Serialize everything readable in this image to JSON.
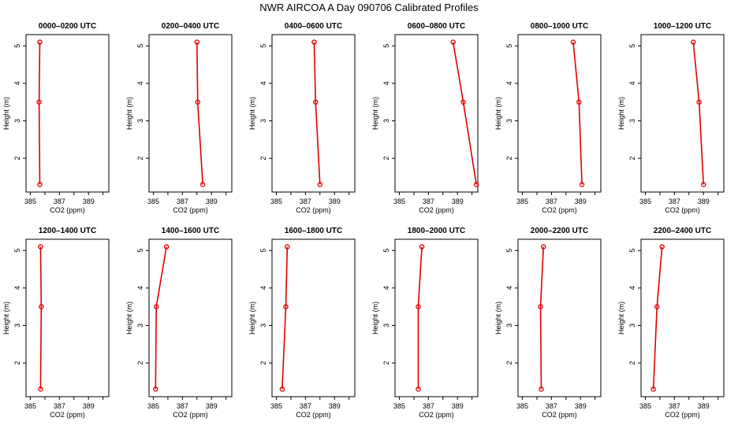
{
  "figure": {
    "title": "NWR AIRCOA A  Day 090706  Calibrated Profiles"
  },
  "colors": {
    "series": "#e00000",
    "axis": "#000000",
    "background": "#ffffff"
  },
  "chart_data": [
    {
      "type": "line",
      "title": "0000–0200 UTC",
      "xlabel": "CO2 (ppm)",
      "ylabel": "Height (m)",
      "xlim": [
        384.7,
        390.4
      ],
      "ylim": [
        1.1,
        5.3
      ],
      "x_ticks": [
        385,
        387,
        389
      ],
      "y_ticks": [
        2,
        3,
        4,
        5
      ],
      "x": [
        385.65,
        385.6,
        385.65
      ],
      "y": [
        5.1,
        3.5,
        1.3
      ]
    },
    {
      "type": "line",
      "title": "0200–0400 UTC",
      "xlabel": "CO2 (ppm)",
      "ylabel": "Height (m)",
      "xlim": [
        384.7,
        390.4
      ],
      "ylim": [
        1.1,
        5.3
      ],
      "x_ticks": [
        385,
        387,
        389
      ],
      "y_ticks": [
        2,
        3,
        4,
        5
      ],
      "x": [
        388.0,
        388.05,
        388.4
      ],
      "y": [
        5.1,
        3.5,
        1.3
      ]
    },
    {
      "type": "line",
      "title": "0400–0600 UTC",
      "xlabel": "CO2 (ppm)",
      "ylabel": "Height (m)",
      "xlim": [
        384.7,
        390.4
      ],
      "ylim": [
        1.1,
        5.3
      ],
      "x_ticks": [
        385,
        387,
        389
      ],
      "y_ticks": [
        2,
        3,
        4,
        5
      ],
      "x": [
        387.6,
        387.7,
        388.0
      ],
      "y": [
        5.1,
        3.5,
        1.3
      ]
    },
    {
      "type": "line",
      "title": "0600–0800 UTC",
      "xlabel": "CO2 (ppm)",
      "ylabel": "Height (m)",
      "xlim": [
        384.7,
        390.4
      ],
      "ylim": [
        1.1,
        5.3
      ],
      "x_ticks": [
        385,
        387,
        389
      ],
      "y_ticks": [
        2,
        3,
        4,
        5
      ],
      "x": [
        388.7,
        389.4,
        390.3
      ],
      "y": [
        5.1,
        3.5,
        1.3
      ]
    },
    {
      "type": "line",
      "title": "0800–1000 UTC",
      "xlabel": "CO2 (ppm)",
      "ylabel": "Height (m)",
      "xlim": [
        384.7,
        390.4
      ],
      "ylim": [
        1.1,
        5.3
      ],
      "x_ticks": [
        385,
        387,
        389
      ],
      "y_ticks": [
        2,
        3,
        4,
        5
      ],
      "x": [
        388.5,
        388.9,
        389.1
      ],
      "y": [
        5.1,
        3.5,
        1.3
      ]
    },
    {
      "type": "line",
      "title": "1000–1200 UTC",
      "xlabel": "CO2 (ppm)",
      "ylabel": "Height (m)",
      "xlim": [
        384.7,
        390.4
      ],
      "ylim": [
        1.1,
        5.3
      ],
      "x_ticks": [
        385,
        387,
        389
      ],
      "y_ticks": [
        2,
        3,
        4,
        5
      ],
      "x": [
        388.3,
        388.7,
        389.0
      ],
      "y": [
        5.1,
        3.5,
        1.3
      ]
    },
    {
      "type": "line",
      "title": "1200–1400 UTC",
      "xlabel": "CO2 (ppm)",
      "ylabel": "Height (m)",
      "xlim": [
        384.7,
        390.4
      ],
      "ylim": [
        1.1,
        5.3
      ],
      "x_ticks": [
        385,
        387,
        389
      ],
      "y_ticks": [
        2,
        3,
        4,
        5
      ],
      "x": [
        385.7,
        385.75,
        385.7
      ],
      "y": [
        5.1,
        3.5,
        1.3
      ]
    },
    {
      "type": "line",
      "title": "1400–1600 UTC",
      "xlabel": "CO2 (ppm)",
      "ylabel": "Height (m)",
      "xlim": [
        384.7,
        390.4
      ],
      "ylim": [
        1.1,
        5.3
      ],
      "x_ticks": [
        385,
        387,
        389
      ],
      "y_ticks": [
        2,
        3,
        4,
        5
      ],
      "x": [
        385.9,
        385.2,
        385.15
      ],
      "y": [
        5.1,
        3.5,
        1.3
      ]
    },
    {
      "type": "line",
      "title": "1600–1800 UTC",
      "xlabel": "CO2 (ppm)",
      "ylabel": "Height (m)",
      "xlim": [
        384.7,
        390.4
      ],
      "ylim": [
        1.1,
        5.3
      ],
      "x_ticks": [
        385,
        387,
        389
      ],
      "y_ticks": [
        2,
        3,
        4,
        5
      ],
      "x": [
        385.75,
        385.65,
        385.4
      ],
      "y": [
        5.1,
        3.5,
        1.3
      ]
    },
    {
      "type": "line",
      "title": "1800–2000 UTC",
      "xlabel": "CO2 (ppm)",
      "ylabel": "Height (m)",
      "xlim": [
        384.7,
        390.4
      ],
      "ylim": [
        1.1,
        5.3
      ],
      "x_ticks": [
        385,
        387,
        389
      ],
      "y_ticks": [
        2,
        3,
        4,
        5
      ],
      "x": [
        386.55,
        386.3,
        386.3
      ],
      "y": [
        5.1,
        3.5,
        1.3
      ]
    },
    {
      "type": "line",
      "title": "2000–2200 UTC",
      "xlabel": "CO2 (ppm)",
      "ylabel": "Height (m)",
      "xlim": [
        384.7,
        390.4
      ],
      "ylim": [
        1.1,
        5.3
      ],
      "x_ticks": [
        385,
        387,
        389
      ],
      "y_ticks": [
        2,
        3,
        4,
        5
      ],
      "x": [
        386.45,
        386.25,
        386.3
      ],
      "y": [
        5.1,
        3.5,
        1.3
      ]
    },
    {
      "type": "line",
      "title": "2200–2400 UTC",
      "xlabel": "CO2 (ppm)",
      "ylabel": "Height (m)",
      "xlim": [
        384.7,
        390.4
      ],
      "ylim": [
        1.1,
        5.3
      ],
      "x_ticks": [
        385,
        387,
        389
      ],
      "y_ticks": [
        2,
        3,
        4,
        5
      ],
      "x": [
        386.15,
        385.8,
        385.55
      ],
      "y": [
        5.1,
        3.5,
        1.3
      ]
    }
  ]
}
